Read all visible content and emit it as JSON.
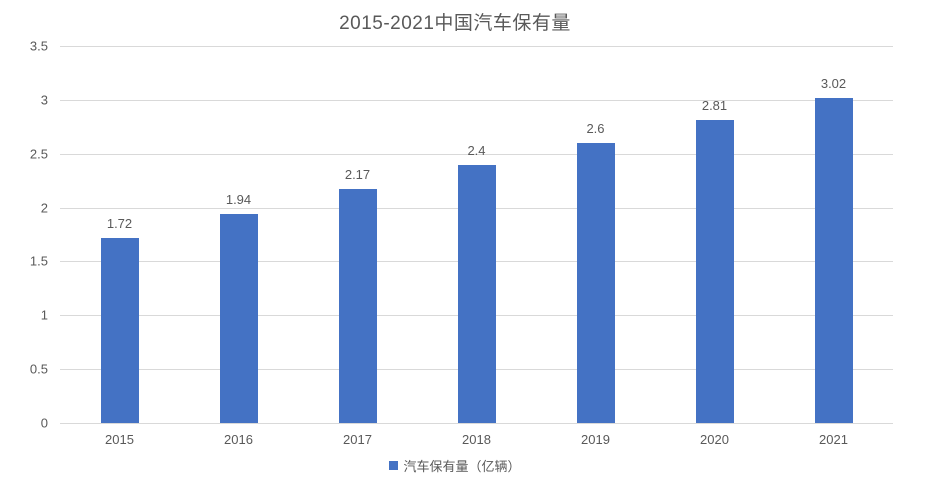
{
  "chart_data": {
    "type": "bar",
    "title": "2015-2021中国汽车保有量",
    "categories": [
      "2015",
      "2016",
      "2017",
      "2018",
      "2019",
      "2020",
      "2021"
    ],
    "series": [
      {
        "name": "汽车保有量（亿辆）",
        "values": [
          1.72,
          1.94,
          2.17,
          2.4,
          2.6,
          2.81,
          3.02
        ],
        "value_labels": [
          "1.72",
          "1.94",
          "2.17",
          "2.4",
          "2.6",
          "2.81",
          "3.02"
        ]
      }
    ],
    "xlabel": "",
    "ylabel": "",
    "ylim": [
      0,
      3.5
    ],
    "y_tick_step": 0.5,
    "y_tick_labels": [
      "0",
      "0.5",
      "1",
      "1.5",
      "2",
      "2.5",
      "3",
      "3.5"
    ],
    "grid": true,
    "legend_position": "bottom",
    "colors": {
      "bar": "#4472c4",
      "gridline": "#d9d9d9",
      "text": "#595959",
      "title": "#595959"
    }
  }
}
